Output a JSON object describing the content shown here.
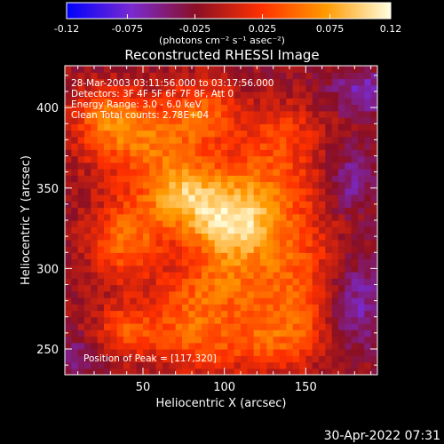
{
  "chart_data": {
    "type": "heatmap",
    "title": "Reconstructed RHESSI Image",
    "xlabel": "Heliocentric X (arcsec)",
    "ylabel": "Heliocentric Y (arcsec)",
    "xlim": [
      2,
      194
    ],
    "ylim": [
      234,
      426
    ],
    "x_ticks": [
      50,
      100,
      150
    ],
    "y_ticks": [
      250,
      300,
      350,
      400
    ],
    "colorbar": {
      "range": [
        -0.12,
        0.12
      ],
      "tick_labels": [
        "-0.12",
        "-0.075",
        "-0.025",
        "0.025",
        "0.075",
        "0.12"
      ],
      "tick_values": [
        -0.12,
        -0.075,
        -0.025,
        0.025,
        0.075,
        0.12
      ],
      "unit_label": "(photons cm⁻² s⁻¹ asec⁻²)",
      "colors": [
        "#0000ff",
        "#7a2ad0",
        "#8a0f24",
        "#ff3000",
        "#ff9a00",
        "#ffffe0"
      ]
    },
    "annotations": [
      "28-Mar-2003 03:11:56.000 to 03:17:56.000",
      "Detectors: 3F 4F 5F 6F 7F 8F, Att 0",
      "Energy Range: 3.0 - 6.0 keV",
      "Clean     Total counts: 2.78E+04",
      "Position of Peak = [117,320]"
    ],
    "peak": {
      "x": 117,
      "y": 320
    },
    "blobs": [
      {
        "x": 105,
        "y": 325,
        "sx": 20,
        "sy": 16,
        "a": 0.1
      },
      {
        "x": 75,
        "y": 345,
        "sx": 18,
        "sy": 14,
        "a": 0.085
      },
      {
        "x": 40,
        "y": 318,
        "sx": 16,
        "sy": 18,
        "a": 0.07
      },
      {
        "x": 55,
        "y": 380,
        "sx": 28,
        "sy": 18,
        "a": 0.07
      },
      {
        "x": 28,
        "y": 395,
        "sx": 14,
        "sy": 12,
        "a": 0.055
      },
      {
        "x": 125,
        "y": 350,
        "sx": 24,
        "sy": 18,
        "a": 0.06
      },
      {
        "x": 145,
        "y": 300,
        "sx": 20,
        "sy": 22,
        "a": 0.05
      },
      {
        "x": 100,
        "y": 290,
        "sx": 22,
        "sy": 14,
        "a": 0.055
      },
      {
        "x": 40,
        "y": 262,
        "sx": 14,
        "sy": 12,
        "a": 0.055
      },
      {
        "x": 78,
        "y": 262,
        "sx": 16,
        "sy": 18,
        "a": 0.06
      },
      {
        "x": 115,
        "y": 255,
        "sx": 18,
        "sy": 14,
        "a": 0.05
      },
      {
        "x": 145,
        "y": 262,
        "sx": 16,
        "sy": 16,
        "a": 0.045
      },
      {
        "x": 88,
        "y": 400,
        "sx": 14,
        "sy": 12,
        "a": 0.05
      },
      {
        "x": 135,
        "y": 385,
        "sx": 18,
        "sy": 14,
        "a": 0.04
      },
      {
        "x": 178,
        "y": 355,
        "sx": 12,
        "sy": 14,
        "a": -0.04
      },
      {
        "x": 180,
        "y": 280,
        "sx": 14,
        "sy": 20,
        "a": -0.045
      },
      {
        "x": 185,
        "y": 410,
        "sx": 14,
        "sy": 10,
        "a": -0.045
      },
      {
        "x": 12,
        "y": 245,
        "sx": 10,
        "sy": 10,
        "a": -0.03
      }
    ],
    "baseline": -0.02
  },
  "footer": {
    "timestamp": "30-Apr-2022 07:31"
  }
}
